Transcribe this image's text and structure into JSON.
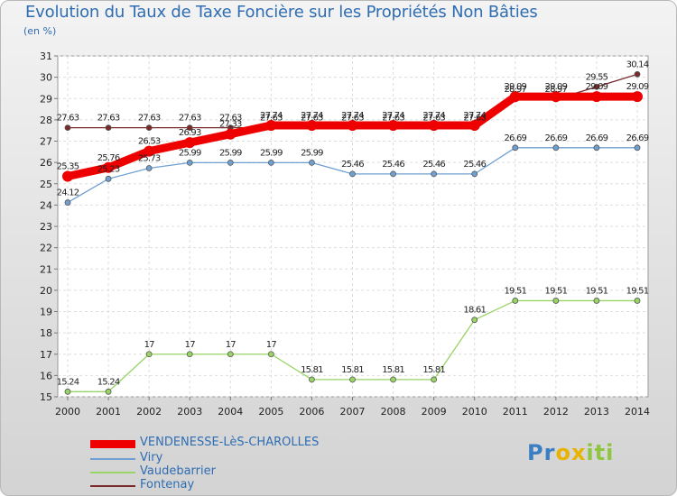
{
  "chart_data": {
    "type": "line",
    "title": "Evolution du Taux de Taxe Foncière sur les Propriétés Non Bâties",
    "unit_label": "(en %)",
    "categories": [
      "2000",
      "2001",
      "2002",
      "2003",
      "2004",
      "2005",
      "2006",
      "2007",
      "2008",
      "2009",
      "2010",
      "2011",
      "2012",
      "2013",
      "2014"
    ],
    "ylim": [
      15,
      31
    ],
    "yticks": [
      15,
      16,
      17,
      18,
      19,
      20,
      21,
      22,
      23,
      24,
      25,
      26,
      27,
      28,
      29,
      30,
      31
    ],
    "grid": true,
    "legend_position": "bottom-left",
    "series": [
      {
        "name": "VENDENESSE-LèS-CHAROLLES",
        "color": "#ee0000",
        "values": [
          25.35,
          25.76,
          26.53,
          26.93,
          27.33,
          27.74,
          27.74,
          27.74,
          27.74,
          27.74,
          27.74,
          29.09,
          29.09,
          29.09,
          29.09
        ],
        "labels": [
          "25.35",
          "25.76",
          "26.53",
          "26.93",
          "27.33",
          "27.74",
          "27.74",
          "27.74",
          "27.74",
          "27.74",
          "27.74",
          "29.09",
          "29.09",
          "29.09",
          "29.09"
        ]
      },
      {
        "name": "Viry",
        "color": "#6fa0d2",
        "values": [
          24.12,
          25.23,
          25.73,
          25.99,
          25.99,
          25.99,
          25.99,
          25.46,
          25.46,
          25.46,
          25.46,
          26.69,
          26.69,
          26.69,
          26.69
        ],
        "labels": [
          "24.12",
          "25.23",
          "25.73",
          "25.99",
          "25.99",
          "25.99",
          "25.99",
          "25.46",
          "25.46",
          "25.46",
          "25.46",
          "26.69",
          "26.69",
          "26.69",
          "26.69"
        ]
      },
      {
        "name": "Vaudebarrier",
        "color": "#99d466",
        "values": [
          15.24,
          15.24,
          17,
          17,
          17,
          17,
          15.81,
          15.81,
          15.81,
          15.81,
          18.61,
          19.51,
          19.51,
          19.51,
          19.51
        ],
        "labels": [
          "15.24",
          "15.24",
          "17",
          "17",
          "17",
          "17",
          "15.81",
          "15.81",
          "15.81",
          "15.81",
          "18.61",
          "19.51",
          "19.51",
          "19.51",
          "19.51"
        ]
      },
      {
        "name": "Fontenay",
        "color": "#7a2a2a",
        "values": [
          27.63,
          27.63,
          27.63,
          27.63,
          27.63,
          27.63,
          27.63,
          27.63,
          27.63,
          27.63,
          27.63,
          28.97,
          28.97,
          29.55,
          30.14
        ],
        "labels": [
          "27.63",
          "27.63",
          "27.63",
          "27.63",
          "27.63",
          "27.63",
          "27.63",
          "27.63",
          "27.63",
          "27.63",
          "27.63",
          "28.97",
          "28.97",
          "29.55",
          "30.14"
        ]
      }
    ]
  },
  "logo": {
    "letters": [
      "P",
      "r",
      "o",
      "x",
      "i",
      "t",
      "i"
    ],
    "colors": [
      "#3a7ec4",
      "#3a7ec4",
      "#e8b400",
      "#e8b400",
      "#8fc63f",
      "#8fc63f",
      "#8fc63f"
    ]
  }
}
